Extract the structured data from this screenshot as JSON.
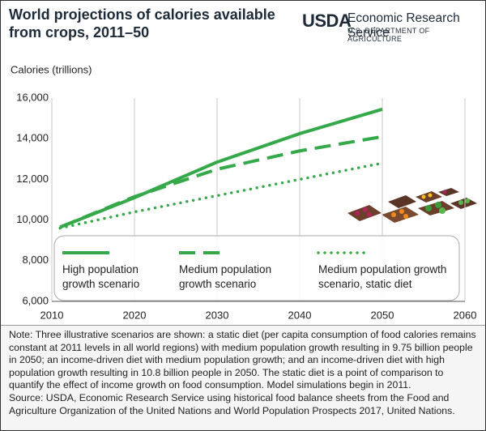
{
  "chart_data": {
    "type": "line",
    "title": "World projections of calories available from crops, 2011–50",
    "logo": {
      "mark": "USDA",
      "agency": "Economic Research Service",
      "department": "U.S. DEPARTMENT OF AGRICULTURE"
    },
    "y_label": "Calories (trillions)",
    "x": [
      2011,
      2020,
      2030,
      2040,
      2050
    ],
    "series": [
      {
        "name": "High population growth scenario",
        "color": "#35a84a",
        "style": "solid",
        "values": [
          9650,
          11100,
          12850,
          14250,
          15450
        ]
      },
      {
        "name": "Medium population growth scenario",
        "color": "#35a84a",
        "style": "dashed",
        "values": [
          9650,
          11150,
          12500,
          13400,
          14100
        ]
      },
      {
        "name": "Medium population growth scenario, static diet",
        "color": "#35a84a",
        "style": "dotted",
        "values": [
          9600,
          10400,
          11200,
          12000,
          12800
        ]
      }
    ],
    "xlim": [
      2010,
      2060
    ],
    "xticks": [
      2010,
      2020,
      2030,
      2040,
      2050,
      2060
    ],
    "ylim": [
      6000,
      16000
    ],
    "yticks": [
      {
        "value": 6000,
        "label": "6,000"
      },
      {
        "value": 8000,
        "label": "8,000"
      },
      {
        "value": 10000,
        "label": "10,000"
      },
      {
        "value": 12000,
        "label": "12,000"
      },
      {
        "value": 14000,
        "label": "14,000"
      },
      {
        "value": 16000,
        "label": "16,000"
      }
    ],
    "grid": true,
    "note": "Note: Three illustrative scenarios are shown: a static diet (per capita consumption of food calories remains constant at 2011 levels in all world regions) with medium population growth resulting in 9.75 billion people in 2050; an income-driven diet with medium population growth; and an income-driven diet with high population growth resulting in 10.8 billion people in 2050. The static diet is a point of comparison to quantify the effect of income growth on food consumption. Model simulations begin in 2011.",
    "source": "Source: USDA, Economic Research Service using historical food balance sheets from the Food and Agriculture Organization of the United Nations and World Population Prospects 2017, United Nations."
  }
}
